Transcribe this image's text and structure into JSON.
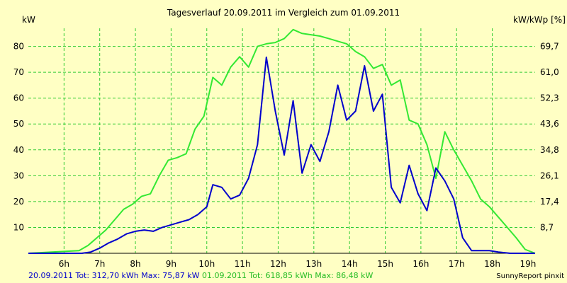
{
  "chart_data": {
    "type": "line",
    "title": "Tagesverlauf 20.09.2011 im Vergleich zum 01.09.2011",
    "ylabel": "kW",
    "ylabel_right": "kW/kWp [%]",
    "xlim": [
      5.0,
      19.2
    ],
    "ylim": [
      0,
      87
    ],
    "x_ticks": [
      6,
      7,
      8,
      9,
      10,
      11,
      12,
      13,
      14,
      15,
      16,
      17,
      18,
      19
    ],
    "x_tick_labels": [
      "6h",
      "7h",
      "8h",
      "9h",
      "10h",
      "11h",
      "12h",
      "13h",
      "14h",
      "15h",
      "16h",
      "17h",
      "18h",
      "19h"
    ],
    "y_ticks": [
      10,
      20,
      30,
      40,
      50,
      60,
      70,
      80
    ],
    "y_tick_labels": [
      "10",
      "20",
      "30",
      "40",
      "50",
      "60",
      "70",
      "80"
    ],
    "y_right_ticks": [
      10,
      20,
      30,
      40,
      50,
      60,
      70,
      80
    ],
    "y_right_tick_labels": [
      "8,7",
      "17,4",
      "26,1",
      "34,8",
      "43,6",
      "52,3",
      "61,0",
      "69,7"
    ],
    "grid": true,
    "series": [
      {
        "name": "20.09.2011",
        "color": "#0000CC",
        "x": [
          5.0,
          6.5,
          6.75,
          7.0,
          7.25,
          7.5,
          7.75,
          8.0,
          8.25,
          8.5,
          8.75,
          9.0,
          9.25,
          9.5,
          9.75,
          10.0,
          10.17,
          10.42,
          10.67,
          10.92,
          11.17,
          11.42,
          11.67,
          11.92,
          12.17,
          12.42,
          12.67,
          12.92,
          13.17,
          13.42,
          13.67,
          13.92,
          14.17,
          14.42,
          14.67,
          14.92,
          15.17,
          15.42,
          15.67,
          15.92,
          16.17,
          16.42,
          16.67,
          16.92,
          17.17,
          17.42,
          17.67,
          17.92,
          18.17,
          18.5,
          19.2
        ],
        "values": [
          0,
          0,
          0.5,
          2,
          4,
          5.5,
          7.5,
          8.5,
          9,
          8.5,
          10,
          11,
          12,
          13,
          15,
          18,
          26.5,
          25.5,
          21,
          22.5,
          29,
          42,
          75.8,
          55,
          38,
          59,
          31,
          42,
          35.5,
          47,
          65,
          51.5,
          55,
          72.5,
          55,
          61.5,
          25.5,
          19.5,
          34,
          23,
          16.5,
          33,
          28,
          21,
          6,
          1,
          1,
          1,
          0.5,
          0,
          0
        ]
      },
      {
        "name": "01.09.2011",
        "color": "#33E833",
        "x": [
          5.0,
          6.42,
          6.67,
          6.92,
          7.17,
          7.42,
          7.67,
          7.92,
          8.17,
          8.42,
          8.67,
          8.92,
          9.17,
          9.42,
          9.67,
          9.92,
          10.17,
          10.42,
          10.67,
          10.92,
          11.17,
          11.42,
          11.67,
          11.92,
          12.17,
          12.42,
          12.67,
          12.92,
          13.17,
          13.42,
          13.67,
          13.92,
          14.17,
          14.42,
          14.67,
          14.92,
          15.17,
          15.42,
          15.67,
          15.92,
          16.17,
          16.42,
          16.67,
          16.92,
          17.17,
          17.42,
          17.67,
          17.92,
          18.17,
          18.42,
          18.67,
          18.92,
          19.2
        ],
        "values": [
          0,
          1,
          3,
          6,
          9,
          13,
          17,
          19,
          22,
          23,
          30,
          36,
          37,
          38.5,
          48,
          53,
          68,
          65,
          72,
          76,
          72,
          80,
          81,
          81.5,
          83,
          86.5,
          85,
          84.5,
          84,
          83,
          82,
          81,
          78,
          76,
          71.5,
          73,
          65,
          67,
          51.5,
          50,
          42,
          29,
          47,
          40,
          34,
          28,
          21,
          18,
          14,
          10,
          6,
          1.5,
          0
        ]
      }
    ]
  },
  "footer": {
    "s1_text": "20.09.2011 Tot: 312,70 kWh Max: 75,87 kW",
    "s2_text": "01.09.2011 Tot: 618,85 kWh Max: 86,48 kW",
    "credit": "SunnyReport pinxit"
  },
  "colors": {
    "background": "#FFFFC4",
    "grid": "#33CC33"
  }
}
